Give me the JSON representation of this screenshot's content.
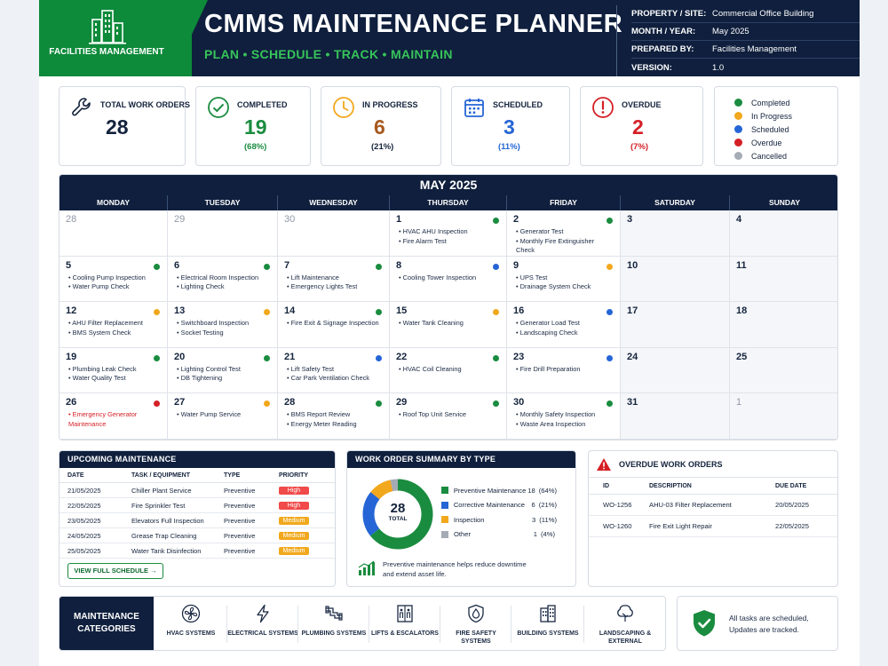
{
  "header": {
    "brand": "FACILITIES MANAGEMENT",
    "title": "CMMS MAINTENANCE PLANNER",
    "subtitle": "PLAN • SCHEDULE • TRACK • MAINTAIN",
    "meta": [
      {
        "key": "PROPERTY / SITE:",
        "value": "Commercial Office Building"
      },
      {
        "key": "MONTH / YEAR:",
        "value": "May 2025"
      },
      {
        "key": "PREPARED BY:",
        "value": "Facilities Management"
      },
      {
        "key": "VERSION:",
        "value": "1.0"
      }
    ]
  },
  "kpis": [
    {
      "label": "TOTAL WORK ORDERS",
      "value": "28",
      "pct": "",
      "color": "#14233c",
      "icon": "wrench-icon"
    },
    {
      "label": "COMPLETED",
      "value": "19",
      "pct": "(68%)",
      "color": "#1a8c3f",
      "icon": "check-circle-icon"
    },
    {
      "label": "IN PROGRESS",
      "value": "6",
      "pct": "(21%)",
      "color": "#a6591f",
      "icon": "clock-icon"
    },
    {
      "label": "SCHEDULED",
      "value": "3",
      "pct": "(11%)",
      "color": "#2565d6",
      "icon": "calendar-icon"
    },
    {
      "label": "OVERDUE",
      "value": "2",
      "pct": "(7%)",
      "color": "#d51f26",
      "icon": "alert-icon"
    }
  ],
  "legend": [
    {
      "label": "Completed",
      "color": "#1a8c3f"
    },
    {
      "label": "In Progress",
      "color": "#f2a81d"
    },
    {
      "label": "Scheduled",
      "color": "#2565d6"
    },
    {
      "label": "Overdue",
      "color": "#d51f26"
    },
    {
      "label": "Cancelled",
      "color": "#a5abb5"
    }
  ],
  "calendar": {
    "title": "MAY 2025",
    "weekdays": [
      "MONDAY",
      "TUESDAY",
      "WEDNESDAY",
      "THURSDAY",
      "FRIDAY",
      "SATURDAY",
      "SUNDAY"
    ],
    "days": [
      {
        "n": "28",
        "dim": true,
        "tasks": []
      },
      {
        "n": "29",
        "dim": true,
        "tasks": []
      },
      {
        "n": "30",
        "dim": true,
        "tasks": []
      },
      {
        "n": "1",
        "status": "#1a8c3f",
        "tasks": [
          "HVAC AHU Inspection",
          "Fire Alarm Test"
        ]
      },
      {
        "n": "2",
        "status": "#1a8c3f",
        "tasks": [
          "Generator Test",
          "Monthly Fire Extinguisher Check"
        ]
      },
      {
        "n": "3",
        "weekend": true,
        "tasks": []
      },
      {
        "n": "4",
        "weekend": true,
        "tasks": []
      },
      {
        "n": "5",
        "status": "#1a8c3f",
        "tasks": [
          "Cooling Pump Inspection",
          "Water Pump Check"
        ]
      },
      {
        "n": "6",
        "status": "#1a8c3f",
        "tasks": [
          "Electrical Room Inspection",
          "Lighting Check"
        ]
      },
      {
        "n": "7",
        "status": "#1a8c3f",
        "tasks": [
          "Lift Maintenance",
          "Emergency Lights Test"
        ]
      },
      {
        "n": "8",
        "status": "#2565d6",
        "tasks": [
          "Cooling Tower Inspection"
        ]
      },
      {
        "n": "9",
        "status": "#f2a81d",
        "tasks": [
          "UPS Test",
          "Drainage System Check"
        ]
      },
      {
        "n": "10",
        "weekend": true,
        "tasks": []
      },
      {
        "n": "11",
        "weekend": true,
        "tasks": []
      },
      {
        "n": "12",
        "status": "#f2a81d",
        "tasks": [
          "AHU Filter Replacement",
          "BMS System Check"
        ]
      },
      {
        "n": "13",
        "status": "#f2a81d",
        "tasks": [
          "Switchboard Inspection",
          "Socket Testing"
        ]
      },
      {
        "n": "14",
        "status": "#1a8c3f",
        "tasks": [
          "Fire Exit & Signage Inspection"
        ]
      },
      {
        "n": "15",
        "status": "#f2a81d",
        "tasks": [
          "Water Tank Cleaning"
        ]
      },
      {
        "n": "16",
        "status": "#2565d6",
        "tasks": [
          "Generator Load Test",
          "Landscaping Check"
        ]
      },
      {
        "n": "17",
        "weekend": true,
        "tasks": []
      },
      {
        "n": "18",
        "weekend": true,
        "tasks": []
      },
      {
        "n": "19",
        "status": "#1a8c3f",
        "tasks": [
          "Plumbing Leak Check",
          "Water Quality Test"
        ]
      },
      {
        "n": "20",
        "status": "#1a8c3f",
        "tasks": [
          "Lighting Control Test",
          "DB Tightening"
        ]
      },
      {
        "n": "21",
        "status": "#2565d6",
        "tasks": [
          "Lift Safety Test",
          "Car Park Ventilation Check"
        ]
      },
      {
        "n": "22",
        "status": "#1a8c3f",
        "tasks": [
          "HVAC Coil Cleaning"
        ]
      },
      {
        "n": "23",
        "status": "#2565d6",
        "tasks": [
          "Fire Drill Preparation"
        ]
      },
      {
        "n": "24",
        "weekend": true,
        "tasks": []
      },
      {
        "n": "25",
        "weekend": true,
        "tasks": []
      },
      {
        "n": "26",
        "status": "#d51f26",
        "red": true,
        "tasks": [
          "Emergency Generator Maintenance"
        ]
      },
      {
        "n": "27",
        "status": "#f2a81d",
        "tasks": [
          "Water Pump Service"
        ]
      },
      {
        "n": "28",
        "status": "#1a8c3f",
        "tasks": [
          "BMS Report Review",
          "Energy Meter Reading"
        ]
      },
      {
        "n": "29",
        "status": "#1a8c3f",
        "tasks": [
          "Roof Top Unit Service"
        ]
      },
      {
        "n": "30",
        "status": "#1a8c3f",
        "tasks": [
          "Monthly Safety Inspection",
          "Waste Area Inspection"
        ]
      },
      {
        "n": "31",
        "weekend": true,
        "tasks": []
      },
      {
        "n": "1",
        "dim": true,
        "weekend": true,
        "tasks": []
      }
    ]
  },
  "upcoming": {
    "title": "UPCOMING MAINTENANCE",
    "columns": [
      "DATE",
      "TASK / EQUIPMENT",
      "TYPE",
      "PRIORITY"
    ],
    "rows": [
      {
        "date": "21/05/2025",
        "task": "Chiller Plant Service",
        "type": "Preventive",
        "priority": "High",
        "color": "#f04a4a"
      },
      {
        "date": "22/05/2025",
        "task": "Fire Sprinkler Test",
        "type": "Preventive",
        "priority": "High",
        "color": "#f04a4a"
      },
      {
        "date": "23/05/2025",
        "task": "Elevators Full Inspection",
        "type": "Preventive",
        "priority": "Medium",
        "color": "#f2a81d"
      },
      {
        "date": "24/05/2025",
        "task": "Grease Trap Cleaning",
        "type": "Preventive",
        "priority": "Medium",
        "color": "#f2a81d"
      },
      {
        "date": "25/05/2025",
        "task": "Water Tank Disinfection",
        "type": "Preventive",
        "priority": "Medium",
        "color": "#f2a81d"
      }
    ],
    "button": "VIEW FULL SCHEDULE →"
  },
  "summary": {
    "title": "WORK ORDER SUMMARY BY TYPE",
    "total": "28",
    "total_label": "TOTAL",
    "note": [
      "Preventive maintenance helps reduce downtime",
      "and extend asset life."
    ]
  },
  "chart_data": {
    "type": "pie",
    "categories": [
      "Preventive Maintenance",
      "Corrective Maintenance",
      "Inspection",
      "Other"
    ],
    "values": [
      18,
      6,
      3,
      1
    ],
    "labels": [
      "(64%)",
      "(21%)",
      "(11%)",
      "(4%)"
    ],
    "colors": [
      "#1a8c3f",
      "#2565d6",
      "#f2a81d",
      "#a5abb5"
    ]
  },
  "overdue": {
    "title": "OVERDUE WORK ORDERS",
    "columns": [
      "ID",
      "DESCRIPTION",
      "DUE DATE"
    ],
    "rows": [
      {
        "id": "WO-1256",
        "desc": "AHU-03 Filter Replacement",
        "due": "20/05/2025"
      },
      {
        "id": "WO-1260",
        "desc": "Fire Exit Light Repair",
        "due": "22/05/2025"
      }
    ]
  },
  "categories": {
    "label": "MAINTENANCE CATEGORIES",
    "items": [
      {
        "name": "HVAC SYSTEMS",
        "icon": "fan-icon"
      },
      {
        "name": "ELECTRICAL SYSTEMS",
        "icon": "lightning-icon"
      },
      {
        "name": "PLUMBING SYSTEMS",
        "icon": "pipe-icon"
      },
      {
        "name": "LIFTS & ESCALATORS",
        "icon": "elevator-icon"
      },
      {
        "name": "FIRE SAFETY SYSTEMS",
        "icon": "flame-shield-icon"
      },
      {
        "name": "BUILDING SYSTEMS",
        "icon": "building-icon"
      },
      {
        "name": "LANDSCAPING & EXTERNAL",
        "icon": "tree-icon"
      }
    ]
  },
  "status": {
    "line1": "All tasks are scheduled,",
    "line2": "Updates are tracked."
  }
}
